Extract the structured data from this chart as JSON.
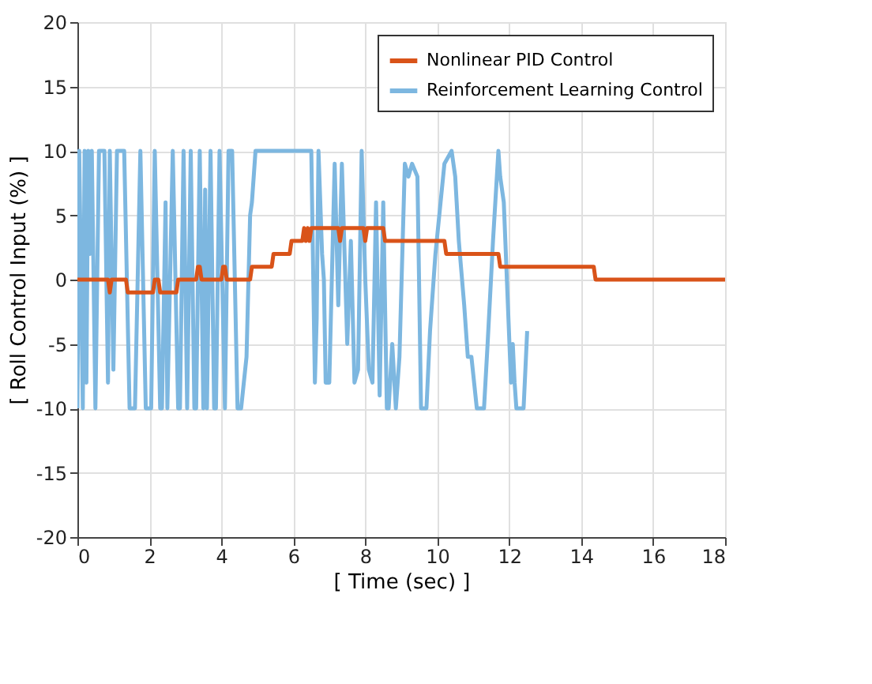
{
  "chart_data": {
    "type": "line",
    "xlabel": "[ Time (sec) ]",
    "ylabel": "[ Roll Control Input (%) ]",
    "xlim": [
      0,
      18
    ],
    "xticks": [
      0,
      2,
      4,
      6,
      8,
      10,
      12,
      14,
      16,
      18
    ],
    "ylim": [
      -20,
      20
    ],
    "yticks": [
      -20,
      -15,
      -10,
      -5,
      0,
      5,
      10,
      15,
      20
    ],
    "grid": true,
    "legend": "top right",
    "marker": "none",
    "line_style": "solid",
    "series": [
      {
        "name": "Nonlinear PID Control",
        "color": "#d95319",
        "x": [
          0,
          0.85,
          0.9,
          0.95,
          1.35,
          1.4,
          2.1,
          2.15,
          2.25,
          2.3,
          2.75,
          2.8,
          3.3,
          3.35,
          3.4,
          3.45,
          4.0,
          4.05,
          4.1,
          4.15,
          4.8,
          4.85,
          5.4,
          5.45,
          5.9,
          5.95,
          6.25,
          6.3,
          6.35,
          6.4,
          6.45,
          6.5,
          7.25,
          7.3,
          7.35,
          7.95,
          8.0,
          8.05,
          8.5,
          8.55,
          8.6,
          10.2,
          10.25,
          11.7,
          11.75,
          14.35,
          14.4,
          18
        ],
        "values": [
          0,
          0,
          -1,
          0,
          0,
          -1,
          -1,
          0,
          0,
          -1,
          -1,
          0,
          0,
          1,
          1,
          0,
          0,
          1,
          1,
          0,
          0,
          1,
          1,
          2,
          2,
          3,
          3,
          4,
          3,
          4,
          3,
          4,
          4,
          3,
          4,
          4,
          3,
          4,
          4,
          3,
          3,
          3,
          2,
          2,
          1,
          1,
          0,
          0
        ]
      },
      {
        "name": "Reinforcement Learning Control",
        "color": "#7db7e0",
        "x": [
          0,
          0.05,
          0.15,
          0.2,
          0.25,
          0.3,
          0.35,
          0.4,
          0.5,
          0.6,
          0.75,
          0.85,
          0.9,
          1.0,
          1.1,
          1.3,
          1.45,
          1.6,
          1.75,
          1.9,
          2.05,
          2.15,
          2.3,
          2.35,
          2.45,
          2.5,
          2.65,
          2.8,
          2.85,
          2.95,
          3.05,
          3.15,
          3.25,
          3.3,
          3.4,
          3.5,
          3.55,
          3.6,
          3.7,
          3.8,
          3.85,
          3.95,
          4.1,
          4.2,
          4.3,
          4.45,
          4.55,
          4.7,
          4.8,
          4.85,
          4.95,
          5.1,
          6.5,
          6.6,
          6.65,
          6.7,
          6.8,
          6.85,
          6.9,
          7.0,
          7.15,
          7.25,
          7.35,
          7.5,
          7.6,
          7.7,
          7.8,
          7.9,
          8.0,
          8.1,
          8.2,
          8.3,
          8.4,
          8.5,
          8.6,
          8.65,
          8.75,
          8.85,
          8.95,
          9.1,
          9.2,
          9.3,
          9.45,
          9.55,
          9.7,
          9.8,
          9.95,
          10.2,
          10.4,
          10.5,
          10.6,
          10.75,
          10.85,
          10.95,
          11.1,
          11.3,
          11.4,
          11.55,
          11.7,
          11.75,
          11.85,
          12.05,
          12.1,
          12.15,
          12.2,
          12.4,
          12.5
        ],
        "values": [
          -10,
          10,
          -10,
          10,
          -8,
          10,
          2,
          10,
          -10,
          10,
          10,
          -8,
          10,
          -7,
          10,
          10,
          -10,
          -10,
          10,
          -10,
          -10,
          10,
          -10,
          -10,
          6,
          -10,
          10,
          -10,
          -10,
          10,
          -10,
          10,
          -10,
          -10,
          10,
          -10,
          7,
          -10,
          10,
          -10,
          -10,
          10,
          -10,
          10,
          10,
          -10,
          -10,
          -6,
          5,
          6,
          10,
          10,
          10,
          -8,
          -3,
          10,
          2,
          0,
          -8,
          -8,
          9,
          -2,
          9,
          -5,
          3,
          -8,
          -7,
          10,
          0,
          -7,
          -8,
          6,
          -9,
          6,
          -10,
          -10,
          -5,
          -10,
          -6,
          9,
          8,
          9,
          8,
          -10,
          -10,
          -4,
          2,
          9,
          10,
          8,
          3,
          -2,
          -6,
          -6,
          -10,
          -10,
          -5,
          3,
          10,
          8,
          6,
          -8,
          -5,
          -8,
          -10,
          -10,
          -4
        ]
      }
    ]
  }
}
